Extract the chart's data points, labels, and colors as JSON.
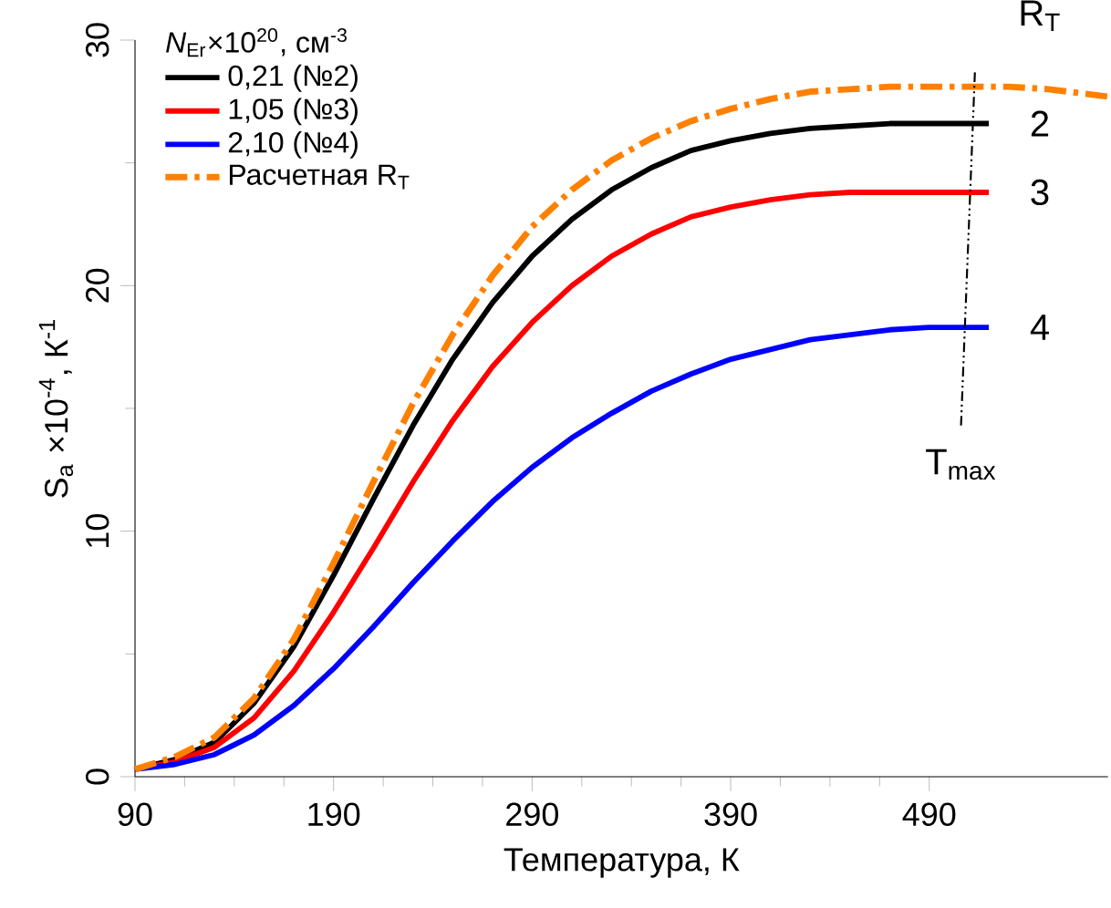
{
  "chart_data": {
    "type": "line",
    "xlabel": "Температура, К",
    "ylabel": "S$_{a}$ ×10$^{-4}$, К$^{-1}$",
    "legend_title": "*N*$_{Er}$×10$^{20}$, см$^{-3}$",
    "x": [
      90,
      110,
      130,
      150,
      170,
      190,
      210,
      230,
      250,
      270,
      290,
      310,
      330,
      350,
      370,
      390,
      410,
      430,
      450,
      470,
      490,
      520
    ],
    "series": [
      {
        "name": "0,21 (№2)",
        "color": "#000000",
        "line_style": "solid",
        "values": [
          0.3,
          0.7,
          1.4,
          3,
          5.3,
          8.2,
          11.3,
          14.3,
          17,
          19.3,
          21.2,
          22.7,
          23.9,
          24.8,
          25.5,
          25.9,
          26.2,
          26.4,
          26.5,
          26.6,
          26.6,
          26.6
        ]
      },
      {
        "name": "1,05 (№3)",
        "color": "#ff0000",
        "line_style": "solid",
        "values": [
          0.3,
          0.6,
          1.2,
          2.4,
          4.3,
          6.7,
          9.3,
          12,
          14.5,
          16.7,
          18.5,
          20,
          21.2,
          22.1,
          22.8,
          23.2,
          23.5,
          23.7,
          23.8,
          23.8,
          23.8,
          23.8
        ]
      },
      {
        "name": "2,10 (№4)",
        "color": "#0000ff",
        "line_style": "solid",
        "values": [
          0.3,
          0.5,
          0.9,
          1.7,
          2.9,
          4.4,
          6.1,
          7.9,
          9.6,
          11.2,
          12.6,
          13.8,
          14.8,
          15.7,
          16.4,
          17,
          17.4,
          17.8,
          18.0,
          18.2,
          18.3,
          18.3
        ]
      },
      {
        "name": "Расчетная R$_{T}$",
        "color": "#ff8000",
        "line_style": "dashdot",
        "x": [
          90,
          110,
          130,
          150,
          170,
          190,
          210,
          230,
          250,
          270,
          290,
          310,
          330,
          350,
          370,
          390,
          410,
          430,
          450,
          470,
          490,
          510,
          530,
          550,
          580
        ],
        "values": [
          0.3,
          0.8,
          1.6,
          3.2,
          5.6,
          8.7,
          12,
          15.2,
          18,
          20.4,
          22.4,
          23.9,
          25.1,
          26,
          26.7,
          27.2,
          27.6,
          27.9,
          28.0,
          28.1,
          28.1,
          28.1,
          28.1,
          28.0,
          27.7
        ]
      },
      {
        "color": "#000000",
        "line_style": "dashdotdot",
        "x": [
          506,
          513
        ],
        "values": [
          14.3,
          28.7
        ]
      }
    ],
    "annotations": [
      "R$_{T}$",
      "2",
      "3",
      "4",
      "T$_{max}$"
    ],
    "xlim": [
      90,
      580
    ],
    "ylim": [
      0,
      30
    ],
    "xticks": [
      90,
      190,
      290,
      390,
      490
    ],
    "yticks": [
      0,
      10,
      20,
      30
    ],
    "legend": "top left"
  }
}
